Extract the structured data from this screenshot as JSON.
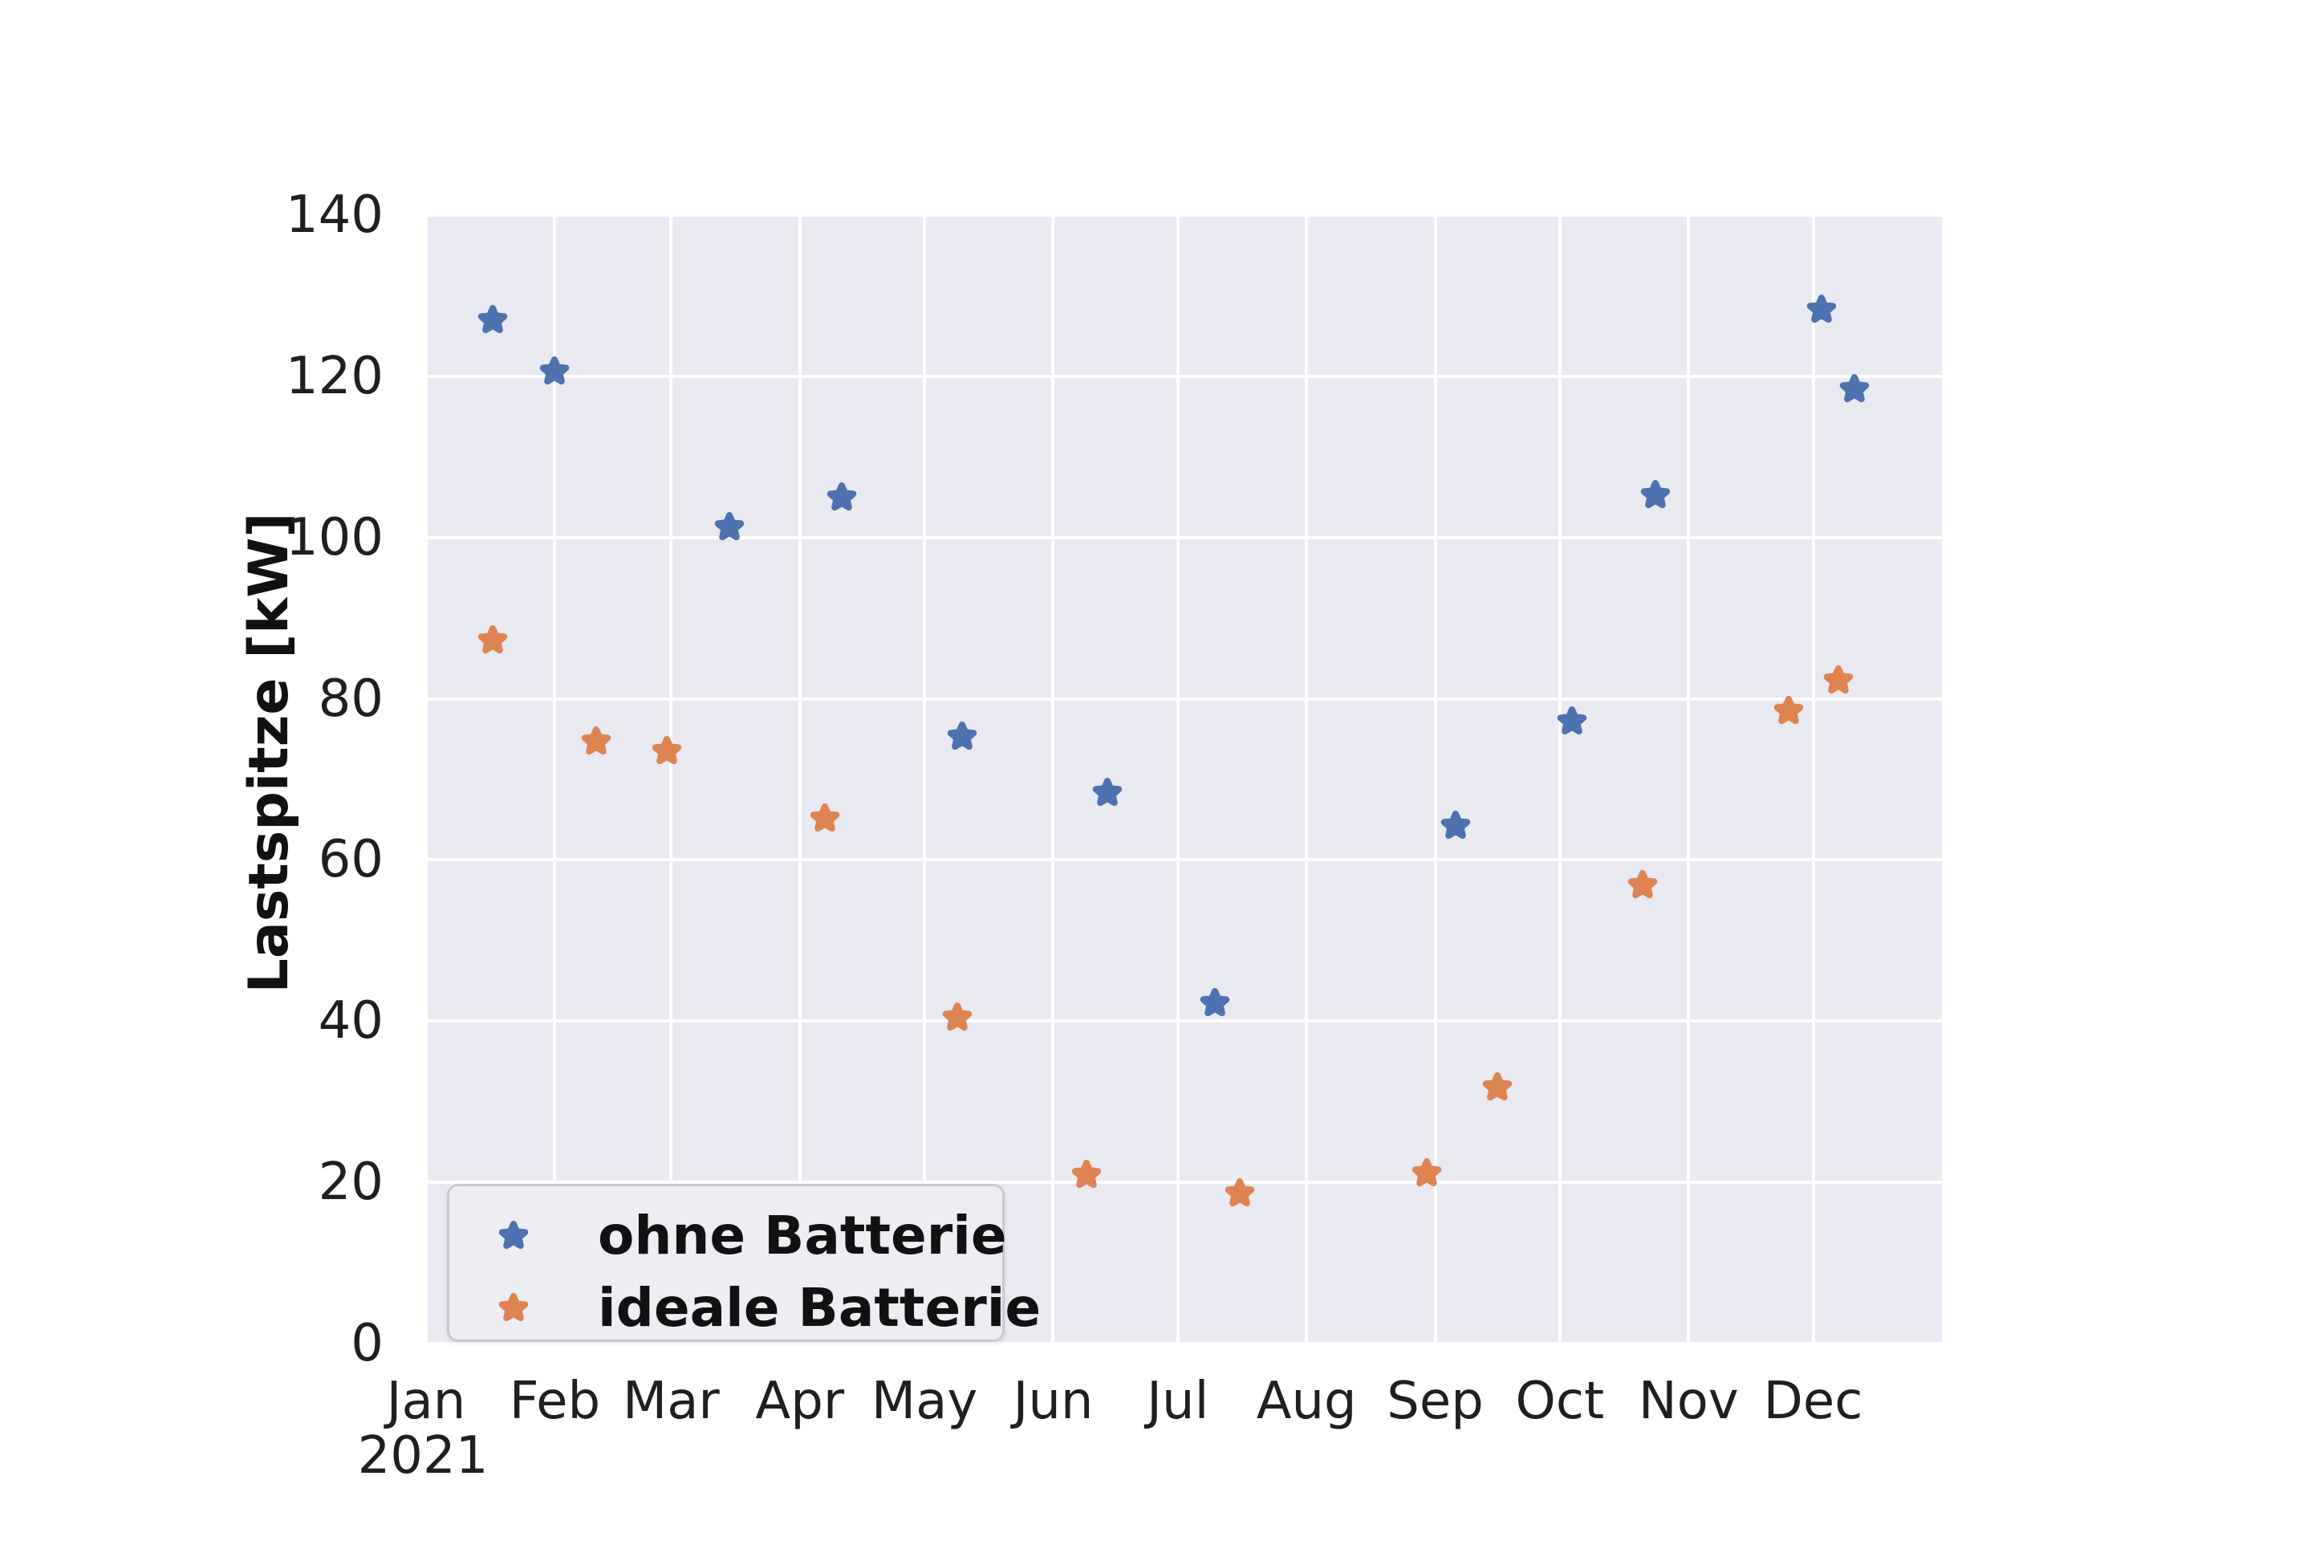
{
  "figure": {
    "background": "#ffffff",
    "plot_background": "#e9e9f1",
    "grid_color": "#ffffff",
    "tick_color": "#1f1f1f"
  },
  "chart_data": {
    "type": "scatter",
    "title": "",
    "xlabel": "",
    "ylabel": "Lastspitze [kW]",
    "grid": true,
    "marker": "star",
    "x_axis": {
      "unit": "days_of_year_2021",
      "range_days": [
        0,
        365
      ],
      "tick_labels": [
        "Jan",
        "Feb",
        "Mar",
        "Apr",
        "May",
        "Jun",
        "Jul",
        "Aug",
        "Sep",
        "Oct",
        "Nov",
        "Dec"
      ],
      "tick_days": [
        0,
        31,
        59,
        90,
        120,
        151,
        181,
        212,
        243,
        273,
        304,
        334
      ],
      "year_label": "2021"
    },
    "y_axis": {
      "min": 0,
      "max": 140,
      "step": 20,
      "tick_labels": [
        "0",
        "20",
        "40",
        "60",
        "80",
        "100",
        "120",
        "140"
      ]
    },
    "legend": {
      "position": "lower left",
      "entries": [
        {
          "label": "ohne Batterie",
          "color": "#4c72b0",
          "marker": "star"
        },
        {
          "label": "ideale Batterie",
          "color": "#dd8452",
          "marker": "star"
        }
      ]
    },
    "series": [
      {
        "name": "ohne Batterie",
        "color": "#4c72b0",
        "points": [
          {
            "day": 16,
            "value": 127.0
          },
          {
            "day": 31,
            "value": 120.6
          },
          {
            "day": 73,
            "value": 101.3
          },
          {
            "day": 100,
            "value": 105.0
          },
          {
            "day": 129,
            "value": 75.3
          },
          {
            "day": 164,
            "value": 68.3
          },
          {
            "day": 190,
            "value": 42.2
          },
          {
            "day": 248,
            "value": 64.2
          },
          {
            "day": 276,
            "value": 77.2
          },
          {
            "day": 296,
            "value": 105.2
          },
          {
            "day": 336,
            "value": 128.3
          },
          {
            "day": 344,
            "value": 118.4
          }
        ]
      },
      {
        "name": "ideale Batterie",
        "color": "#dd8452",
        "points": [
          {
            "day": 16,
            "value": 87.2
          },
          {
            "day": 41,
            "value": 74.7
          },
          {
            "day": 58,
            "value": 73.5
          },
          {
            "day": 96,
            "value": 65.1
          },
          {
            "day": 128,
            "value": 40.4
          },
          {
            "day": 159,
            "value": 20.9
          },
          {
            "day": 196,
            "value": 18.6
          },
          {
            "day": 241,
            "value": 21.1
          },
          {
            "day": 258,
            "value": 31.8
          },
          {
            "day": 293,
            "value": 56.9
          },
          {
            "day": 328,
            "value": 78.5
          },
          {
            "day": 340,
            "value": 82.2
          }
        ]
      }
    ]
  }
}
